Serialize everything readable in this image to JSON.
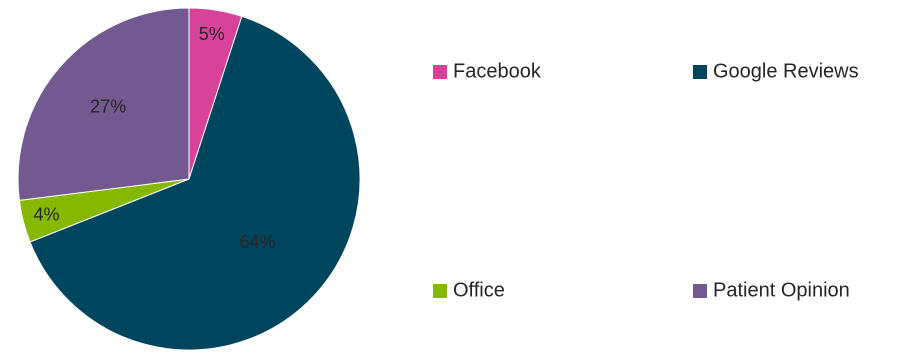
{
  "chart_data": {
    "type": "pie",
    "title": "",
    "slices": [
      {
        "label": "Facebook",
        "value": 5,
        "display": "5%",
        "color": "#d7439b"
      },
      {
        "label": "Google Reviews",
        "value": 64,
        "display": "64%",
        "color": "#00455e"
      },
      {
        "label": "Office",
        "value": 4,
        "display": "4%",
        "color": "#86b800"
      },
      {
        "label": "Patient Opinion",
        "value": 27,
        "display": "27%",
        "color": "#725a91"
      }
    ],
    "start_angle_deg": 0,
    "direction": "clockwise",
    "legend_position": "right"
  }
}
